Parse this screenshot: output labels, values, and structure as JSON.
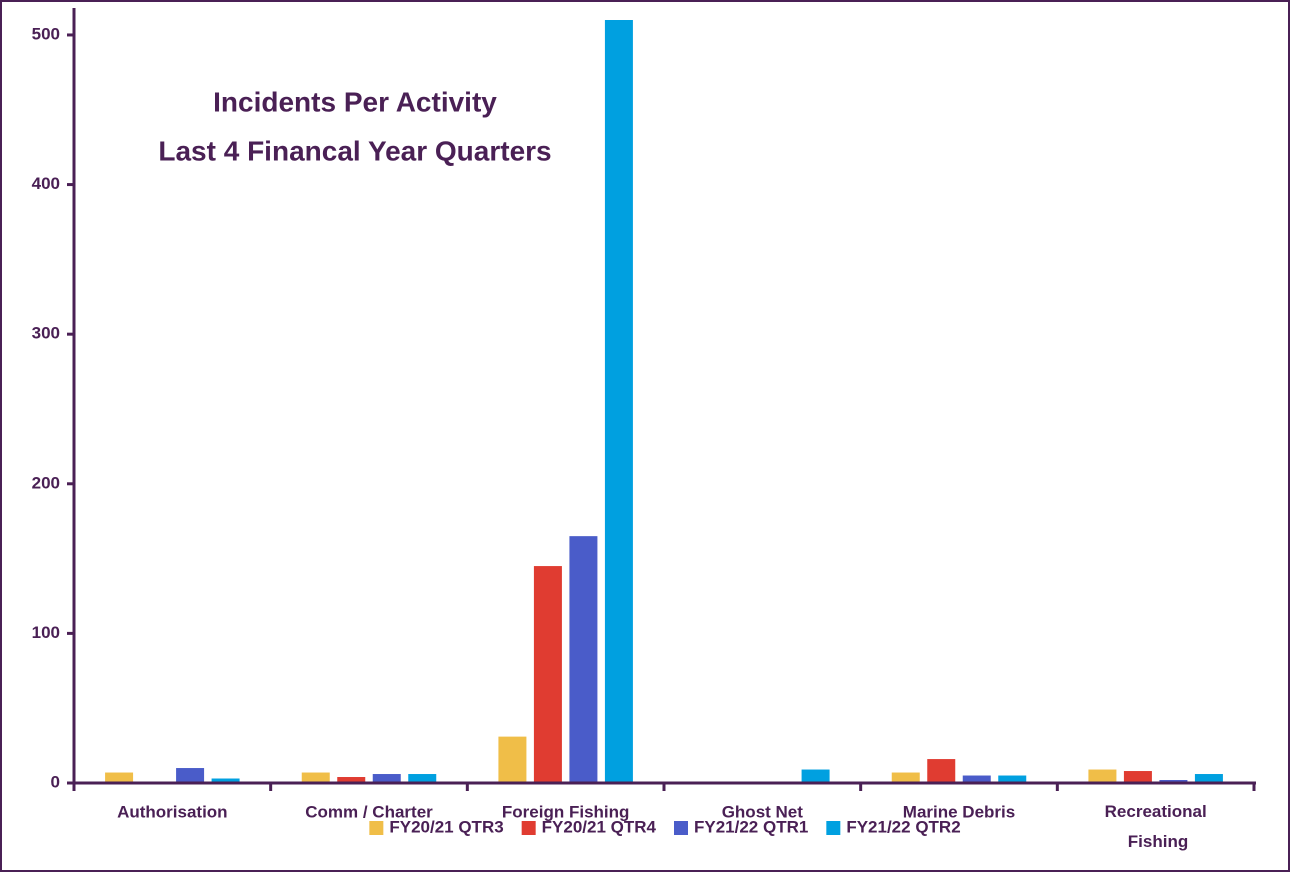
{
  "chart_data": {
    "type": "bar",
    "title": "Incidents Per Activity",
    "subtitle": "Last 4 Financal Year Quarters",
    "categories": [
      "Authorisation",
      "Comm / Charter",
      "Foreign Fishing",
      "Ghost Net",
      "Marine Debris",
      "Recreational Fishing"
    ],
    "series": [
      {
        "name": "FY20/21 QTR3",
        "color": "#f0be48",
        "values": [
          7,
          7,
          31,
          0,
          7,
          9
        ]
      },
      {
        "name": "FY20/21 QTR4",
        "color": "#e03c31",
        "values": [
          0,
          4,
          145,
          0,
          16,
          8
        ]
      },
      {
        "name": "FY21/22 QTR1",
        "color": "#4a5cc9",
        "values": [
          10,
          6,
          165,
          0,
          5,
          2
        ]
      },
      {
        "name": "FY21/22 QTR2",
        "color": "#00a0e0",
        "values": [
          3,
          6,
          510,
          9,
          5,
          6
        ]
      }
    ],
    "ylim": [
      0,
      510
    ],
    "yticks": [
      0,
      100,
      200,
      300,
      400,
      500
    ],
    "grid": false,
    "legend": "bottom"
  }
}
